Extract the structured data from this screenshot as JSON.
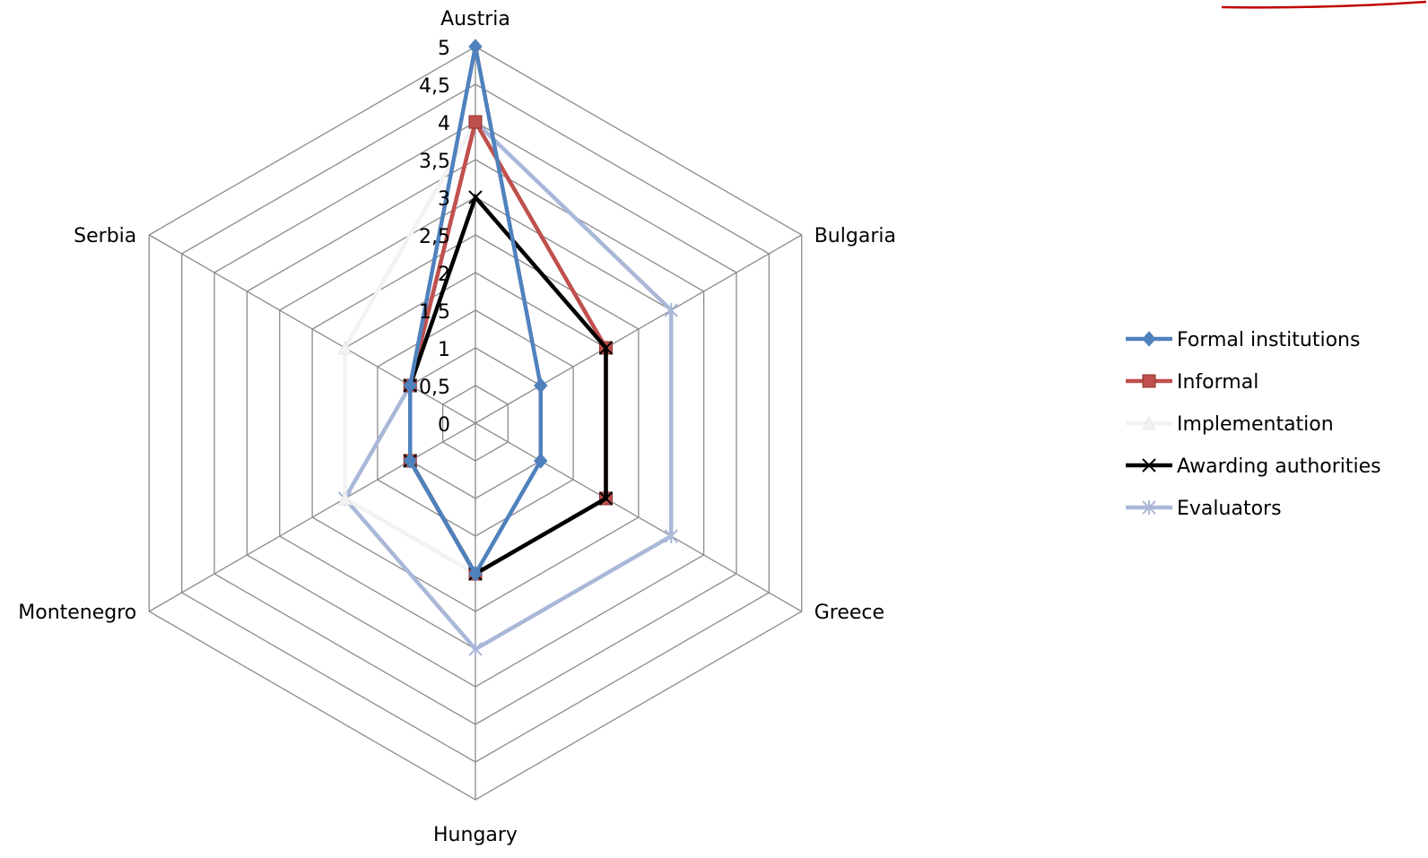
{
  "chart_data": {
    "type": "radar",
    "categories": [
      "Austria",
      "Bulgaria",
      "Greece",
      "Hungary",
      "Montenegro",
      "Serbia"
    ],
    "rmax": 5,
    "ticks": [
      "0",
      "0,5",
      "1",
      "1,5",
      "2",
      "2,5",
      "3",
      "3,5",
      "4",
      "4,5",
      "5"
    ],
    "tick_values": [
      0,
      0.5,
      1,
      1.5,
      2,
      2.5,
      3,
      3.5,
      4,
      4.5,
      5
    ],
    "legend_position": "right",
    "series": [
      {
        "name": "Formal institutions",
        "color": "#4f81bd",
        "marker": "diamond",
        "values": [
          5,
          1,
          1,
          2,
          1,
          1
        ]
      },
      {
        "name": "Informal",
        "color": "#c0504d",
        "marker": "square",
        "values": [
          4,
          2,
          2,
          2,
          1,
          1
        ]
      },
      {
        "name": "Implementation",
        "color": "#f2f2f2",
        "marker": "triangle",
        "values": [
          4,
          2,
          2,
          2,
          2,
          2
        ]
      },
      {
        "name": "Awarding authorities",
        "color": "#000000",
        "marker": "x",
        "values": [
          3,
          2,
          2,
          2,
          1,
          1
        ]
      },
      {
        "name": "Evaluators",
        "color": "#a9b8d8",
        "marker": "star",
        "values": [
          4,
          3,
          3,
          3,
          2,
          1
        ]
      }
    ]
  }
}
